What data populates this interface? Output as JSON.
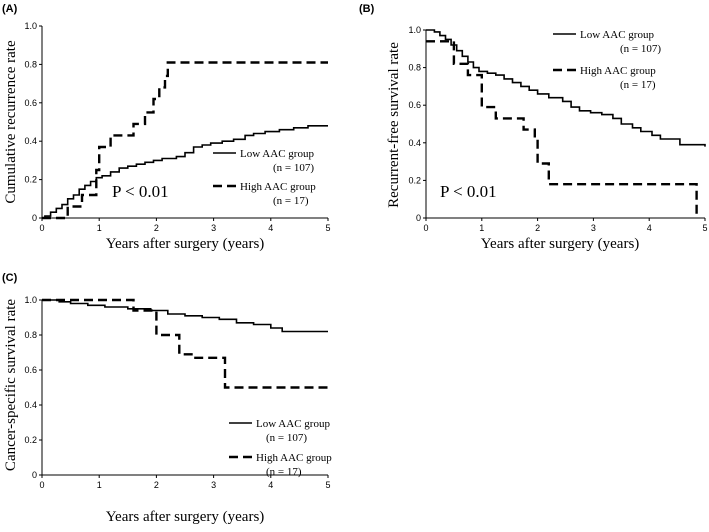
{
  "chart_data": [
    {
      "type": "line",
      "panel": "(A)",
      "ylabel": "Cumulative recurrence rate",
      "xlabel": "Years after surgery (years)",
      "xlim": [
        0,
        5
      ],
      "ylim": [
        0,
        1.0
      ],
      "xticks": [
        "0",
        "1",
        "2",
        "3",
        "4",
        "5"
      ],
      "yticks": [
        "0",
        "0.2",
        "0.4",
        "0.6",
        "0.8",
        "1.0"
      ],
      "pvalue": "P < 0.01",
      "legend": [
        {
          "label": "Low AAC group",
          "n": "(n = 107)",
          "style": "solid"
        },
        {
          "label": "High AAC group",
          "n": "(n = 17)",
          "style": "dashed"
        }
      ],
      "series": [
        {
          "name": "Low AAC group",
          "step": [
            [
              0,
              0
            ],
            [
              0.05,
              0.01
            ],
            [
              0.15,
              0.03
            ],
            [
              0.25,
              0.05
            ],
            [
              0.35,
              0.07
            ],
            [
              0.45,
              0.1
            ],
            [
              0.55,
              0.12
            ],
            [
              0.65,
              0.15
            ],
            [
              0.75,
              0.17
            ],
            [
              0.85,
              0.19
            ],
            [
              0.95,
              0.21
            ],
            [
              1.05,
              0.22
            ],
            [
              1.2,
              0.24
            ],
            [
              1.35,
              0.26
            ],
            [
              1.5,
              0.27
            ],
            [
              1.65,
              0.28
            ],
            [
              1.8,
              0.29
            ],
            [
              1.95,
              0.3
            ],
            [
              2.1,
              0.31
            ],
            [
              2.35,
              0.32
            ],
            [
              2.5,
              0.34
            ],
            [
              2.65,
              0.37
            ],
            [
              2.8,
              0.38
            ],
            [
              2.95,
              0.39
            ],
            [
              3.15,
              0.4
            ],
            [
              3.35,
              0.41
            ],
            [
              3.55,
              0.43
            ],
            [
              3.7,
              0.44
            ],
            [
              3.9,
              0.45
            ],
            [
              4.15,
              0.46
            ],
            [
              4.4,
              0.47
            ],
            [
              4.65,
              0.48
            ],
            [
              5,
              0.48
            ]
          ]
        },
        {
          "name": "High AAC group",
          "step": [
            [
              0,
              0
            ],
            [
              0.45,
              0.06
            ],
            [
              0.7,
              0.12
            ],
            [
              0.95,
              0.25
            ],
            [
              1.0,
              0.37
            ],
            [
              1.2,
              0.43
            ],
            [
              1.6,
              0.49
            ],
            [
              1.8,
              0.55
            ],
            [
              1.95,
              0.62
            ],
            [
              2.05,
              0.68
            ],
            [
              2.15,
              0.74
            ],
            [
              2.2,
              0.81
            ],
            [
              5,
              0.81
            ]
          ]
        }
      ]
    },
    {
      "type": "line",
      "panel": "(B)",
      "ylabel": "Recurrent-free survival rate",
      "xlabel": "Years after surgery (years)",
      "xlim": [
        0,
        5
      ],
      "ylim": [
        0,
        1.0
      ],
      "xticks": [
        "0",
        "1",
        "2",
        "3",
        "4",
        "5"
      ],
      "yticks": [
        "0",
        "0.2",
        "0.4",
        "0.6",
        "0.8",
        "1.0"
      ],
      "pvalue": "P < 0.01",
      "legend": [
        {
          "label": "Low AAC group",
          "n": "(n = 107)",
          "style": "solid"
        },
        {
          "label": "High AAC group",
          "n": "(n = 17)",
          "style": "dashed"
        }
      ],
      "series": [
        {
          "name": "Low AAC group",
          "step": [
            [
              0,
              1.0
            ],
            [
              0.15,
              0.99
            ],
            [
              0.25,
              0.97
            ],
            [
              0.35,
              0.95
            ],
            [
              0.45,
              0.92
            ],
            [
              0.55,
              0.89
            ],
            [
              0.65,
              0.86
            ],
            [
              0.75,
              0.83
            ],
            [
              0.85,
              0.8
            ],
            [
              0.95,
              0.78
            ],
            [
              1.1,
              0.77
            ],
            [
              1.25,
              0.76
            ],
            [
              1.4,
              0.74
            ],
            [
              1.55,
              0.72
            ],
            [
              1.7,
              0.7
            ],
            [
              1.85,
              0.68
            ],
            [
              2.0,
              0.66
            ],
            [
              2.2,
              0.64
            ],
            [
              2.45,
              0.62
            ],
            [
              2.6,
              0.59
            ],
            [
              2.75,
              0.57
            ],
            [
              2.95,
              0.56
            ],
            [
              3.15,
              0.55
            ],
            [
              3.35,
              0.53
            ],
            [
              3.5,
              0.5
            ],
            [
              3.7,
              0.48
            ],
            [
              3.85,
              0.46
            ],
            [
              4.05,
              0.44
            ],
            [
              4.2,
              0.42
            ],
            [
              4.55,
              0.39
            ],
            [
              5,
              0.38
            ]
          ]
        },
        {
          "name": "High AAC group",
          "step": [
            [
              0,
              0.94
            ],
            [
              0.5,
              0.82
            ],
            [
              0.75,
              0.76
            ],
            [
              1.0,
              0.59
            ],
            [
              1.25,
              0.53
            ],
            [
              1.75,
              0.47
            ],
            [
              1.95,
              0.41
            ],
            [
              2.0,
              0.29
            ],
            [
              2.2,
              0.18
            ],
            [
              4.85,
              0.0
            ]
          ]
        }
      ]
    },
    {
      "type": "line",
      "panel": "(C)",
      "ylabel": "Cancer-specific survival rate",
      "xlabel": "Years after surgery (years)",
      "xlim": [
        0,
        5
      ],
      "ylim": [
        0,
        1.0
      ],
      "xticks": [
        "0",
        "1",
        "2",
        "3",
        "4",
        "5"
      ],
      "yticks": [
        "0",
        "0.2",
        "0.4",
        "0.6",
        "0.8",
        "1.0"
      ],
      "legend": [
        {
          "label": "Low AAC group",
          "n": "(n = 107)",
          "style": "solid"
        },
        {
          "label": "High AAC group",
          "n": "(n = 17)",
          "style": "dashed"
        }
      ],
      "series": [
        {
          "name": "Low AAC group",
          "step": [
            [
              0,
              1.0
            ],
            [
              0.3,
              0.99
            ],
            [
              0.5,
              0.98
            ],
            [
              0.8,
              0.97
            ],
            [
              1.1,
              0.96
            ],
            [
              1.5,
              0.95
            ],
            [
              1.9,
              0.94
            ],
            [
              2.2,
              0.92
            ],
            [
              2.5,
              0.91
            ],
            [
              2.8,
              0.9
            ],
            [
              3.1,
              0.89
            ],
            [
              3.4,
              0.87
            ],
            [
              3.7,
              0.86
            ],
            [
              4.0,
              0.84
            ],
            [
              4.2,
              0.82
            ],
            [
              5,
              0.82
            ]
          ]
        },
        {
          "name": "High AAC group",
          "step": [
            [
              0,
              1.0
            ],
            [
              1.6,
              0.94
            ],
            [
              2.0,
              0.8
            ],
            [
              2.4,
              0.69
            ],
            [
              2.65,
              0.67
            ],
            [
              3.2,
              0.5
            ],
            [
              5,
              0.5
            ]
          ]
        }
      ]
    }
  ]
}
